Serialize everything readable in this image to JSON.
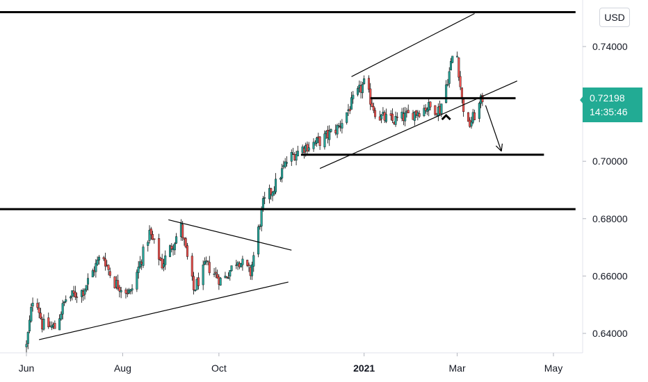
{
  "chart_data": {
    "type": "candlestick",
    "currency": "USD",
    "last_price": "0.72198",
    "countdown": "14:35:46",
    "ylim": [
      0.6345,
      0.7565
    ],
    "y_ticks": [
      "0.64000",
      "0.66000",
      "0.68000",
      "0.70000",
      "0.72000",
      "0.74000"
    ],
    "x_ticks": [
      {
        "label": "Jun",
        "day": 0,
        "bold": false
      },
      {
        "label": "Aug",
        "day": 61,
        "bold": false
      },
      {
        "label": "Oct",
        "day": 122,
        "bold": false
      },
      {
        "label": "2021",
        "day": 214,
        "bold": true
      },
      {
        "label": "Mar",
        "day": 273,
        "bold": false
      },
      {
        "label": "May",
        "day": 334,
        "bold": false
      }
    ],
    "colors": {
      "up": "#26a69a",
      "down": "#ef5350",
      "line": "#000000",
      "tag": "#22ab94"
    },
    "anchors": [
      {
        "day": 0,
        "close": 0.6355
      },
      {
        "day": 5,
        "close": 0.656
      },
      {
        "day": 10,
        "close": 0.643
      },
      {
        "day": 18,
        "close": 0.642
      },
      {
        "day": 25,
        "close": 0.652
      },
      {
        "day": 36,
        "close": 0.655
      },
      {
        "day": 48,
        "close": 0.668
      },
      {
        "day": 55,
        "close": 0.658
      },
      {
        "day": 66,
        "close": 0.654
      },
      {
        "day": 78,
        "close": 0.675
      },
      {
        "day": 86,
        "close": 0.664
      },
      {
        "day": 98,
        "close": 0.677
      },
      {
        "day": 106,
        "close": 0.655
      },
      {
        "day": 114,
        "close": 0.664
      },
      {
        "day": 124,
        "close": 0.658
      },
      {
        "day": 134,
        "close": 0.666
      },
      {
        "day": 142,
        "close": 0.661
      },
      {
        "day": 150,
        "close": 0.685
      },
      {
        "day": 158,
        "close": 0.692
      },
      {
        "day": 166,
        "close": 0.701
      },
      {
        "day": 176,
        "close": 0.705
      },
      {
        "day": 186,
        "close": 0.707
      },
      {
        "day": 198,
        "close": 0.712
      },
      {
        "day": 208,
        "close": 0.722
      },
      {
        "day": 214,
        "close": 0.727
      },
      {
        "day": 222,
        "close": 0.716
      },
      {
        "day": 232,
        "close": 0.714
      },
      {
        "day": 242,
        "close": 0.716
      },
      {
        "day": 254,
        "close": 0.719
      },
      {
        "day": 262,
        "close": 0.718
      },
      {
        "day": 268,
        "close": 0.731
      },
      {
        "day": 272,
        "close": 0.742
      },
      {
        "day": 276,
        "close": 0.721
      },
      {
        "day": 280,
        "close": 0.712
      },
      {
        "day": 285,
        "close": 0.717
      },
      {
        "day": 289,
        "close": 0.722
      }
    ],
    "drawings": {
      "horizontal_levels": [
        {
          "price": 0.752,
          "day_from": -17,
          "day_to": 348
        },
        {
          "price": 0.722,
          "day_from": 218,
          "day_to": 310
        },
        {
          "price": 0.7023,
          "day_from": 174,
          "day_to": 328
        },
        {
          "price": 0.6833,
          "day_from": -17,
          "day_to": 348
        }
      ],
      "trend_lines": [
        {
          "from": [
            8,
            0.6378
          ],
          "to": [
            166,
            0.6579
          ]
        },
        {
          "from": [
            90,
            0.6796
          ],
          "to": [
            168,
            0.669
          ]
        },
        {
          "from": [
            186,
            0.6975
          ],
          "to": [
            311,
            0.728
          ]
        },
        {
          "from": [
            206,
            0.7295
          ],
          "to": [
            284,
            0.7515
          ]
        }
      ],
      "arrow": {
        "from": [
          291,
          0.7195
        ],
        "to": [
          301,
          0.7035
        ]
      },
      "caret": {
        "day": 266,
        "price": 0.716
      }
    }
  }
}
